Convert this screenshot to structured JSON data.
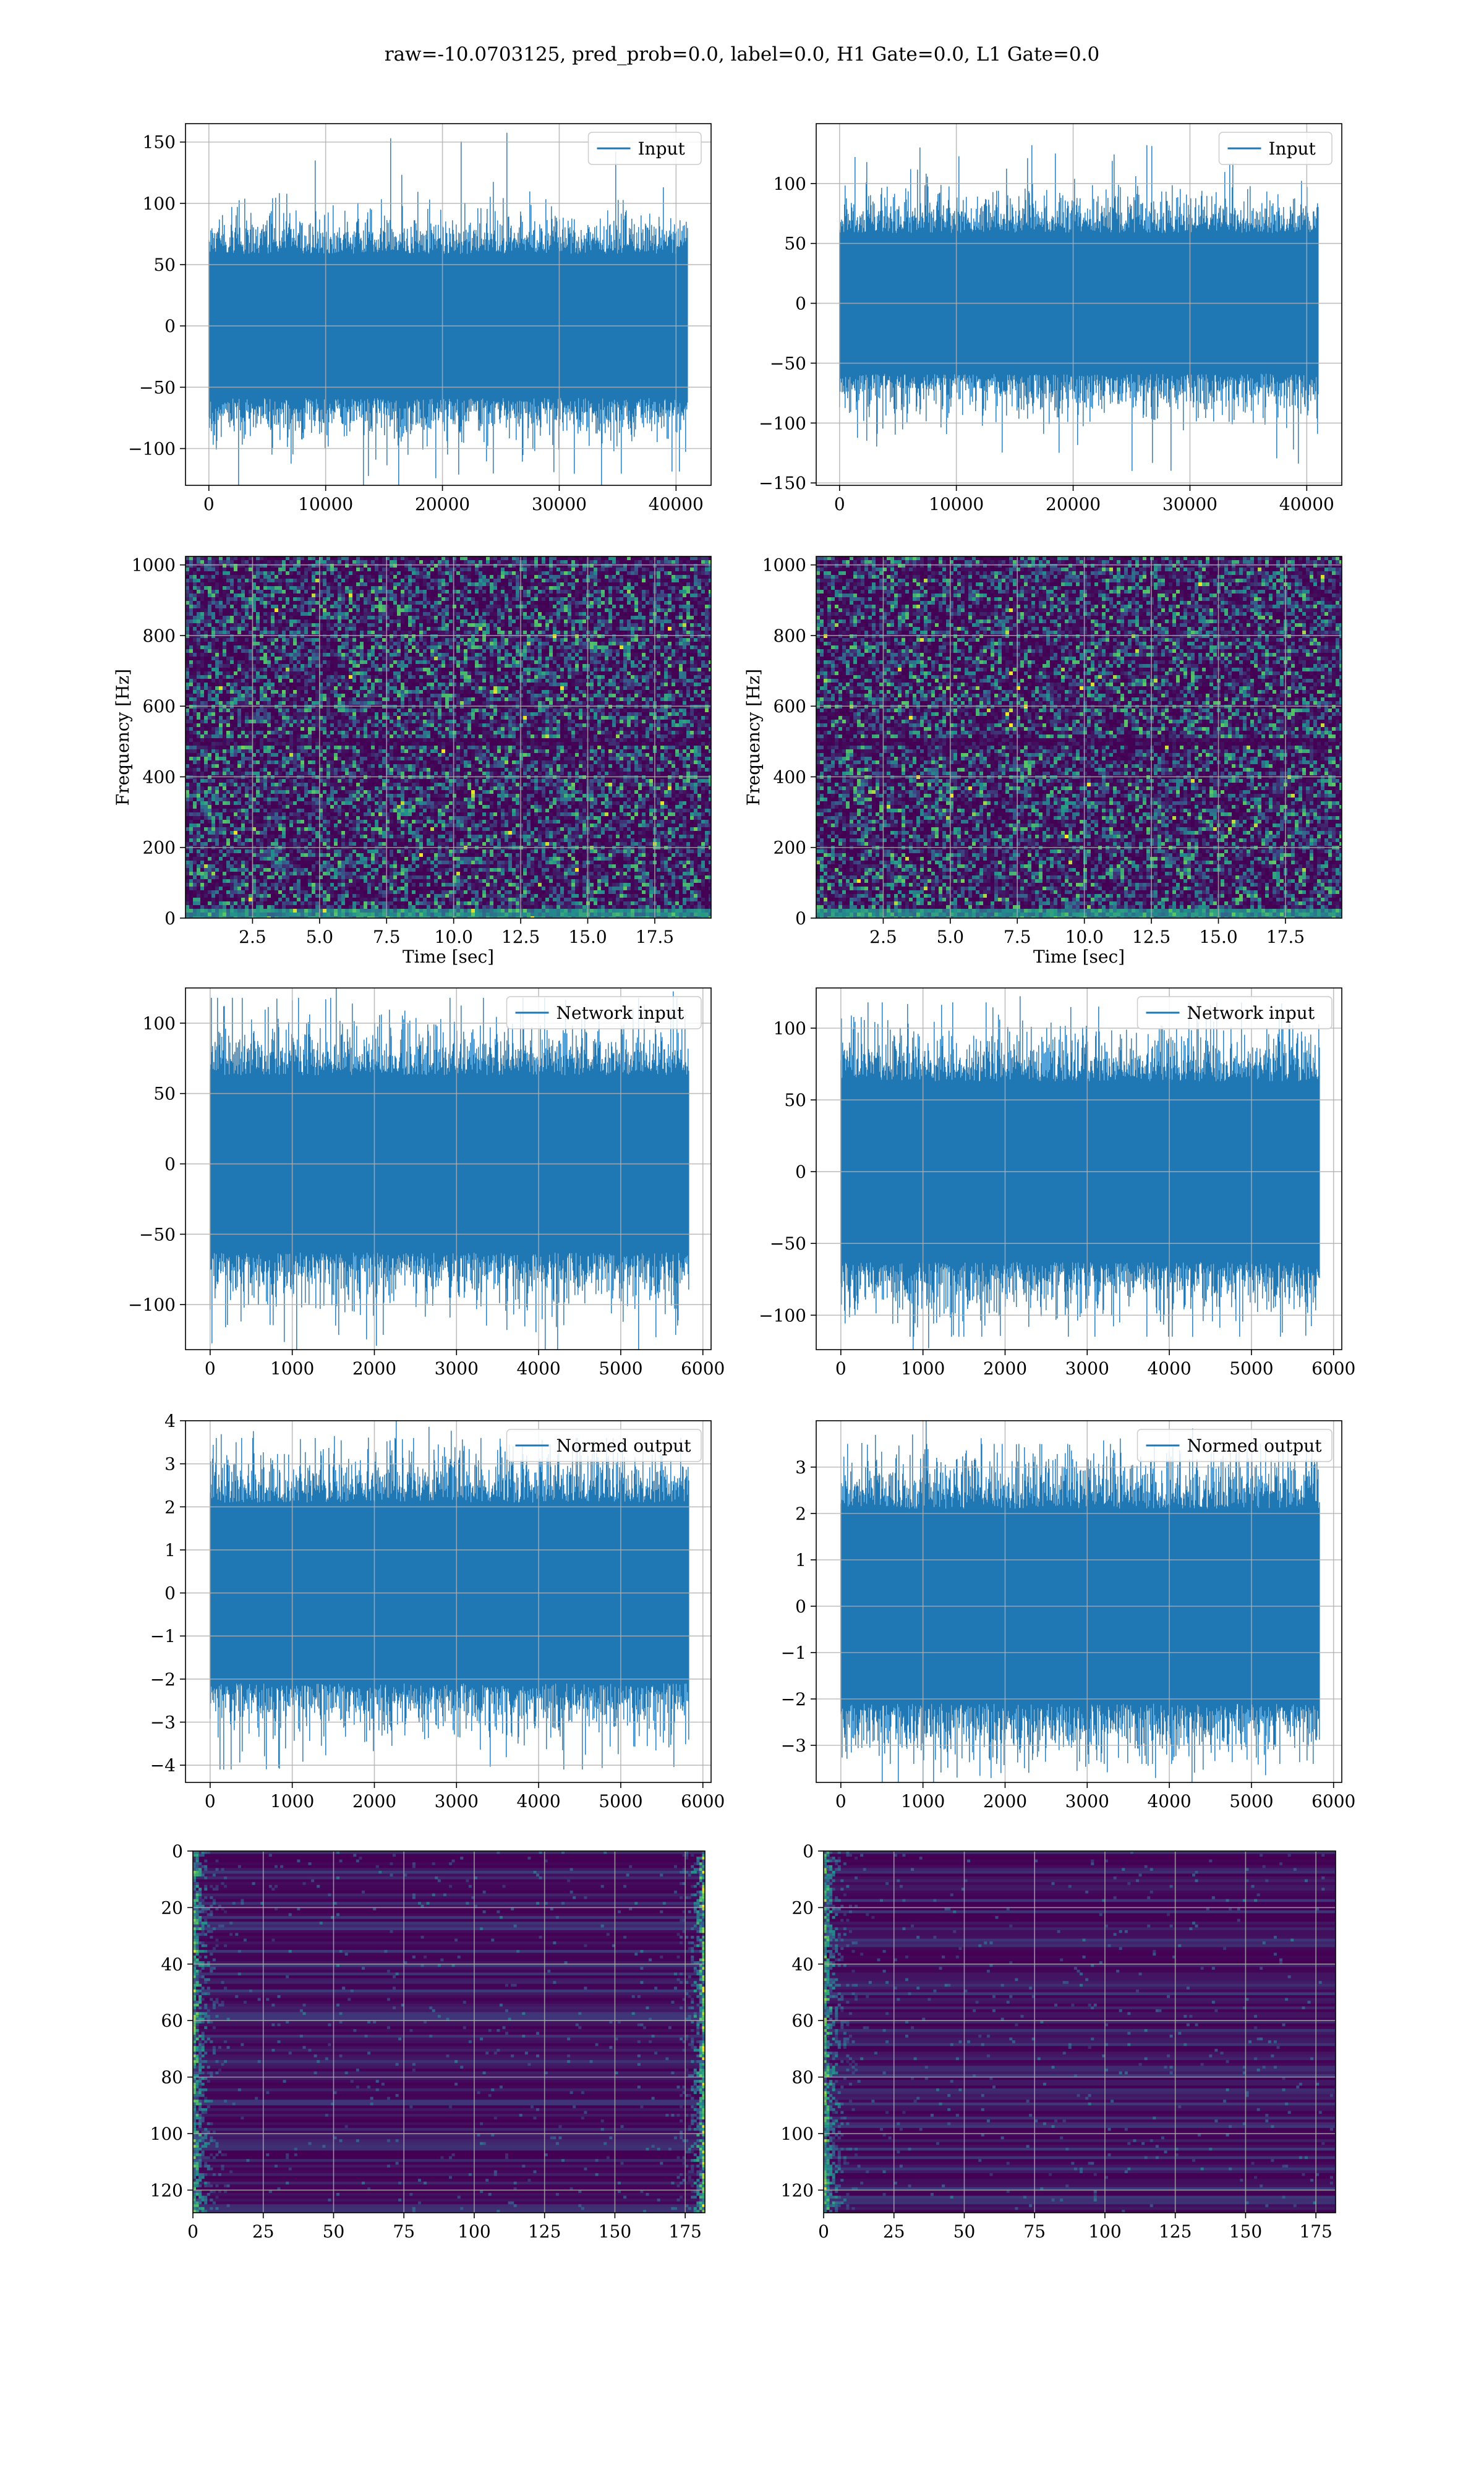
{
  "suptitle": "raw=-10.0703125, pred_prob=0.0, label=0.0, H1 Gate=0.0, L1 Gate=0.0",
  "colors": {
    "line": "#1f77b4",
    "grid": "#b0b0b0",
    "viridis_low": "#440154",
    "viridis_high": "#fde725"
  },
  "chart_data": [
    {
      "id": "input-h1",
      "type": "line",
      "legend": "Input",
      "legend_loc": "upper right",
      "xlim": [
        -2000,
        43000
      ],
      "ylim": [
        -130,
        165
      ],
      "xticks": [
        0,
        10000,
        20000,
        30000,
        40000
      ],
      "yticks": [
        -100,
        -50,
        0,
        50,
        100,
        150
      ],
      "xticklabels": [
        "0",
        "10000",
        "20000",
        "30000",
        "40000"
      ],
      "yticklabels": [
        "−100",
        "−50",
        "0",
        "50",
        "100",
        "150"
      ],
      "signal": {
        "x_range": [
          0,
          40960
        ],
        "std": 28,
        "spikes_max": 158,
        "spikes_min": -130
      },
      "grid": true
    },
    {
      "id": "input-l1",
      "type": "line",
      "legend": "Input",
      "legend_loc": "upper right",
      "xlim": [
        -2000,
        43000
      ],
      "ylim": [
        -152,
        150
      ],
      "xticks": [
        0,
        10000,
        20000,
        30000,
        40000
      ],
      "yticks": [
        -150,
        -100,
        -50,
        0,
        50,
        100
      ],
      "xticklabels": [
        "0",
        "10000",
        "20000",
        "30000",
        "40000"
      ],
      "yticklabels": [
        "−150",
        "−100",
        "−50",
        "0",
        "50",
        "100"
      ],
      "signal": {
        "x_range": [
          0,
          40960
        ],
        "std": 28,
        "spikes_max": 132,
        "spikes_min": -140
      },
      "grid": true
    },
    {
      "id": "spectrogram-h1",
      "type": "heatmap",
      "colormap": "viridis",
      "xlabel": "Time [sec]",
      "ylabel": "Frequency [Hz]",
      "xlim": [
        0,
        19.6
      ],
      "ylim": [
        0,
        1024
      ],
      "xticks": [
        2.5,
        5.0,
        7.5,
        10.0,
        12.5,
        15.0,
        17.5
      ],
      "yticks": [
        0,
        200,
        400,
        600,
        800,
        1000
      ],
      "xticklabels": [
        "2.5",
        "5.0",
        "7.5",
        "10.0",
        "12.5",
        "15.0",
        "17.5"
      ],
      "yticklabels": [
        "0",
        "200",
        "400",
        "600",
        "800",
        "1000"
      ],
      "dark_bands_hz": [
        500
      ],
      "grid": true
    },
    {
      "id": "spectrogram-l1",
      "type": "heatmap",
      "colormap": "viridis",
      "xlabel": "Time [sec]",
      "ylabel": "Frequency [Hz]",
      "xlim": [
        0,
        19.6
      ],
      "ylim": [
        0,
        1024
      ],
      "xticks": [
        2.5,
        5.0,
        7.5,
        10.0,
        12.5,
        15.0,
        17.5
      ],
      "yticks": [
        0,
        200,
        400,
        600,
        800,
        1000
      ],
      "xticklabels": [
        "2.5",
        "5.0",
        "7.5",
        "10.0",
        "12.5",
        "15.0",
        "17.5"
      ],
      "yticklabels": [
        "0",
        "200",
        "400",
        "600",
        "800",
        "1000"
      ],
      "dark_bands_hz": [
        500
      ],
      "grid": true
    },
    {
      "id": "network-input-h1",
      "type": "line",
      "legend": "Network input",
      "legend_loc": "upper right",
      "xlim": [
        -300,
        6100
      ],
      "ylim": [
        -132,
        125
      ],
      "xticks": [
        0,
        1000,
        2000,
        3000,
        4000,
        5000,
        6000
      ],
      "yticks": [
        -100,
        -50,
        0,
        50,
        100
      ],
      "xticklabels": [
        "0",
        "1000",
        "2000",
        "3000",
        "4000",
        "5000",
        "6000"
      ],
      "yticklabels": [
        "−100",
        "−50",
        "0",
        "50",
        "100"
      ],
      "signal": {
        "x_range": [
          0,
          5824
        ],
        "std": 30,
        "spikes_max": 118,
        "spikes_min": -132
      },
      "grid": true
    },
    {
      "id": "network-input-l1",
      "type": "line",
      "legend": "Network input",
      "legend_loc": "upper right",
      "xlim": [
        -300,
        6100
      ],
      "ylim": [
        -124,
        128
      ],
      "xticks": [
        0,
        1000,
        2000,
        3000,
        4000,
        5000,
        6000
      ],
      "yticks": [
        -100,
        -50,
        0,
        50,
        100
      ],
      "xticklabels": [
        "0",
        "1000",
        "2000",
        "3000",
        "4000",
        "5000",
        "6000"
      ],
      "yticklabels": [
        "−100",
        "−50",
        "0",
        "50",
        "100"
      ],
      "signal": {
        "x_range": [
          0,
          5824
        ],
        "std": 30,
        "spikes_max": 118,
        "spikes_min": -115
      },
      "grid": true
    },
    {
      "id": "normed-output-h1",
      "type": "line",
      "legend": "Normed output",
      "legend_loc": "upper right",
      "xlim": [
        -300,
        6100
      ],
      "ylim": [
        -4.4,
        4.0
      ],
      "xticks": [
        0,
        1000,
        2000,
        3000,
        4000,
        5000,
        6000
      ],
      "yticks": [
        -4,
        -3,
        -2,
        -1,
        0,
        1,
        2,
        3,
        4
      ],
      "xticklabels": [
        "0",
        "1000",
        "2000",
        "3000",
        "4000",
        "5000",
        "6000"
      ],
      "yticklabels": [
        "−4",
        "−3",
        "−2",
        "−1",
        "0",
        "1",
        "2",
        "3",
        "4"
      ],
      "signal": {
        "x_range": [
          0,
          5824
        ],
        "std": 1.0,
        "spikes_max": 3.6,
        "spikes_min": -4.1
      },
      "grid": true
    },
    {
      "id": "normed-output-l1",
      "type": "line",
      "legend": "Normed output",
      "legend_loc": "upper right",
      "xlim": [
        -300,
        6100
      ],
      "ylim": [
        -3.8,
        4.0
      ],
      "xticks": [
        0,
        1000,
        2000,
        3000,
        4000,
        5000,
        6000
      ],
      "yticks": [
        -3,
        -2,
        -1,
        0,
        1,
        2,
        3
      ],
      "xticklabels": [
        "0",
        "1000",
        "2000",
        "3000",
        "4000",
        "5000",
        "6000"
      ],
      "yticklabels": [
        "−3",
        "−2",
        "−1",
        "0",
        "1",
        "2",
        "3"
      ],
      "signal": {
        "x_range": [
          0,
          5824
        ],
        "std": 1.0,
        "spikes_max": 3.5,
        "spikes_min": -3.4
      },
      "grid": true
    },
    {
      "id": "feature-map-h1",
      "type": "heatmap",
      "colormap": "viridis",
      "xlim": [
        0,
        182
      ],
      "ylim": [
        128,
        0
      ],
      "xticks": [
        0,
        25,
        50,
        75,
        100,
        125,
        150,
        175
      ],
      "yticks": [
        0,
        20,
        40,
        60,
        80,
        100,
        120
      ],
      "xticklabels": [
        "0",
        "25",
        "50",
        "75",
        "100",
        "125",
        "150",
        "175"
      ],
      "yticklabels": [
        "0",
        "20",
        "40",
        "60",
        "80",
        "100",
        "120"
      ],
      "bright_edges": [
        "left",
        "right"
      ],
      "grid": true
    },
    {
      "id": "feature-map-l1",
      "type": "heatmap",
      "colormap": "viridis",
      "xlim": [
        0,
        182
      ],
      "ylim": [
        128,
        0
      ],
      "xticks": [
        0,
        25,
        50,
        75,
        100,
        125,
        150,
        175
      ],
      "yticks": [
        0,
        20,
        40,
        60,
        80,
        100,
        120
      ],
      "xticklabels": [
        "0",
        "25",
        "50",
        "75",
        "100",
        "125",
        "150",
        "175"
      ],
      "yticklabels": [
        "0",
        "20",
        "40",
        "60",
        "80",
        "100",
        "120"
      ],
      "bright_edges": [
        "left"
      ],
      "grid": true
    }
  ]
}
